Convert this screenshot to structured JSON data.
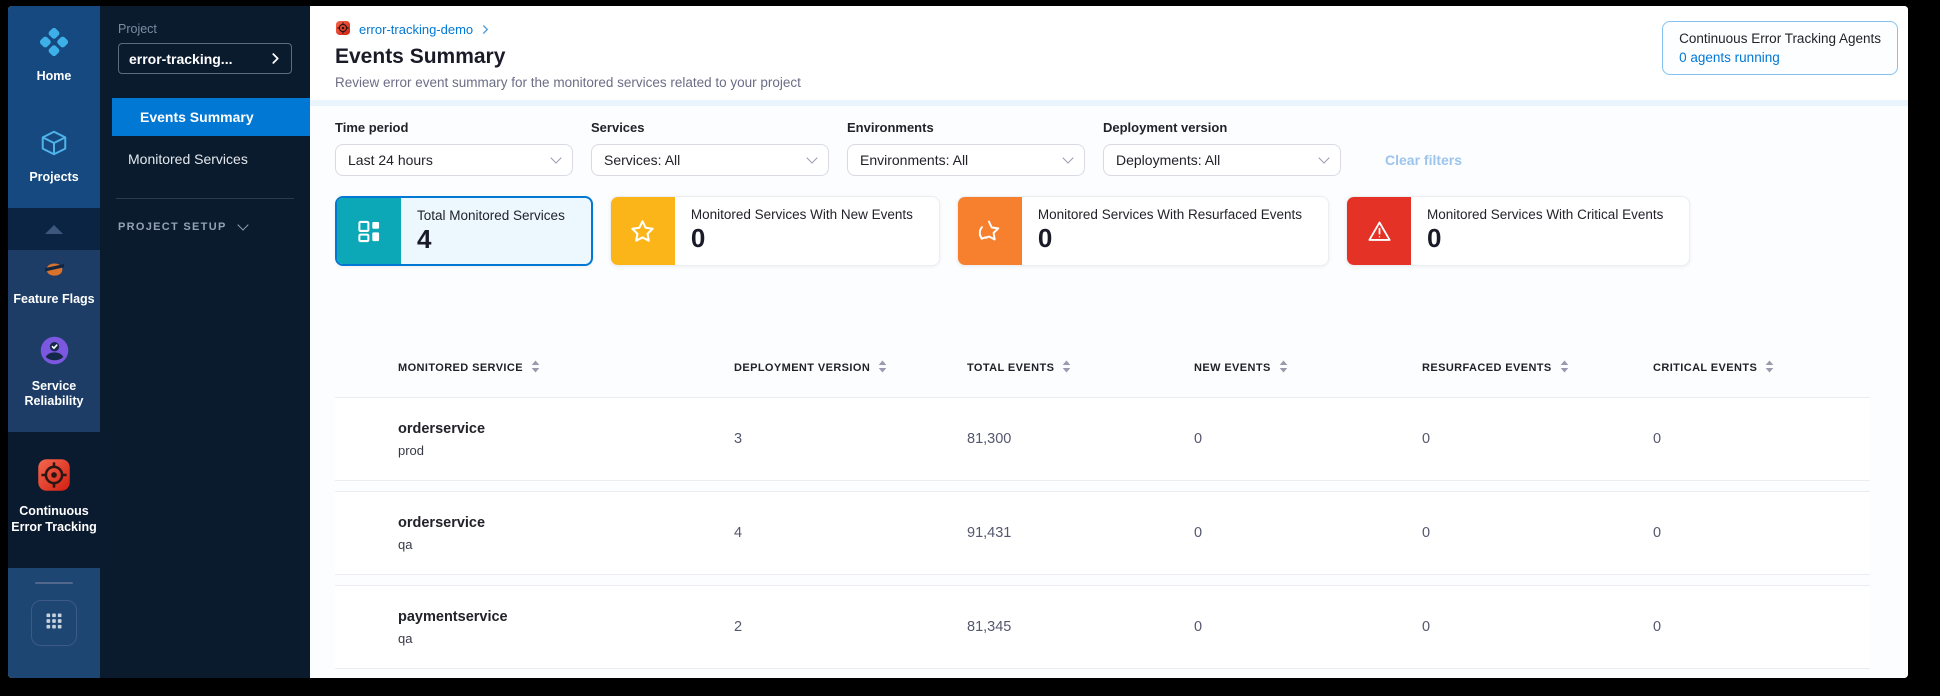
{
  "module_nav": {
    "items": [
      {
        "label": "Home",
        "icon": "harness-home-icon"
      },
      {
        "label": "Projects",
        "icon": "cube-icon"
      },
      {
        "label": "Feature Flags",
        "icon": "feature-flags-icon"
      },
      {
        "label": "Service Reliability",
        "icon": "service-reliability-icon"
      },
      {
        "label": "Continuous Error Tracking",
        "icon": "error-tracking-target-icon",
        "active": true
      }
    ]
  },
  "project_nav": {
    "section_label": "Project",
    "project_selector": "error-tracking...",
    "items": [
      {
        "label": "Events Summary",
        "active": true
      },
      {
        "label": "Monitored Services"
      }
    ],
    "setup_label": "PROJECT SETUP"
  },
  "header": {
    "breadcrumb": "error-tracking-demo",
    "title": "Events Summary",
    "subtitle": "Review error event summary for the monitored services related to your project",
    "agents_box": {
      "title": "Continuous Error Tracking Agents",
      "status": "0 agents running"
    }
  },
  "filters": {
    "groups": [
      {
        "label": "Time period",
        "value": "Last 24 hours"
      },
      {
        "label": "Services",
        "value": "Services: All"
      },
      {
        "label": "Environments",
        "value": "Environments: All"
      },
      {
        "label": "Deployment version",
        "value": "Deployments: All"
      }
    ],
    "clear_label": "Clear filters"
  },
  "summary_cards": [
    {
      "label": "Total Monitored Services",
      "value": "4",
      "color": "#0CA8B7",
      "icon": "dashboard-grid-icon",
      "selected": true
    },
    {
      "label": "Monitored Services With New Events",
      "value": "0",
      "color": "#FCB519",
      "icon": "star-icon"
    },
    {
      "label": "Monitored Services With Resurfaced Events",
      "value": "0",
      "color": "#F6802D",
      "icon": "star-refresh-icon"
    },
    {
      "label": "Monitored Services With Critical Events",
      "value": "0",
      "color": "#E43326",
      "icon": "warning-triangle-icon"
    }
  ],
  "table": {
    "columns": [
      "MONITORED SERVICE",
      "DEPLOYMENT VERSION",
      "TOTAL EVENTS",
      "NEW EVENTS",
      "RESURFACED EVENTS",
      "CRITICAL EVENTS"
    ],
    "rows": [
      {
        "service": "orderservice",
        "environment": "prod",
        "deployment_version": "3",
        "total_events": "81,300",
        "new_events": "0",
        "resurfaced_events": "0",
        "critical_events": "0"
      },
      {
        "service": "orderservice",
        "environment": "qa",
        "deployment_version": "4",
        "total_events": "91,431",
        "new_events": "0",
        "resurfaced_events": "0",
        "critical_events": "0"
      },
      {
        "service": "paymentservice",
        "environment": "qa",
        "deployment_version": "2",
        "total_events": "81,345",
        "new_events": "0",
        "resurfaced_events": "0",
        "critical_events": "0"
      }
    ]
  },
  "colors": {
    "accent_blue": "#0278D5",
    "card_teal": "#0CA8B7",
    "card_yellow": "#FCB519",
    "card_orange": "#F6802D",
    "card_red": "#E43326"
  }
}
